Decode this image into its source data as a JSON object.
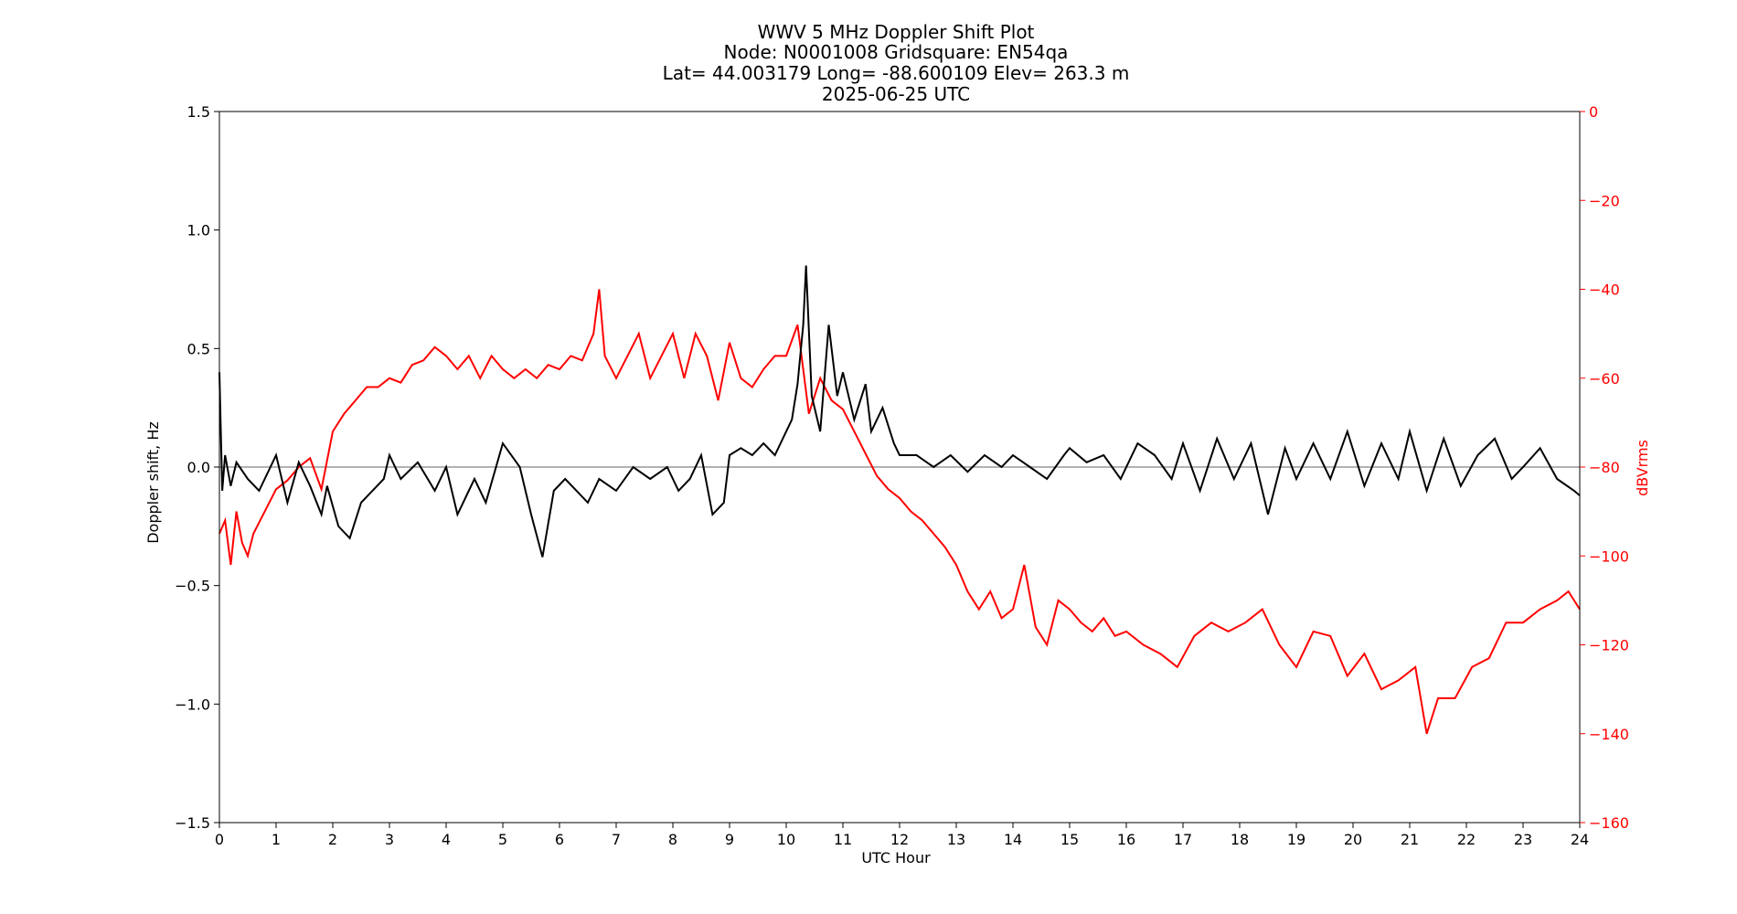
{
  "chart_data": {
    "type": "line",
    "title": [
      "WWV 5 MHz Doppler Shift Plot",
      "Node:  N0001008     Gridsquare:  EN54qa",
      "Lat= 44.003179    Long= -88.600109    Elev= 263.3 m",
      "2025-06-25  UTC"
    ],
    "xlabel": "UTC Hour",
    "ylabel": "Doppler shift, Hz",
    "y2label": "dBVrms",
    "xlim": [
      0,
      24
    ],
    "ylim": [
      -1.5,
      1.5
    ],
    "y2lim": [
      -160,
      0
    ],
    "x_ticks": [
      0,
      1,
      2,
      3,
      4,
      5,
      6,
      7,
      8,
      9,
      10,
      11,
      12,
      13,
      14,
      15,
      16,
      17,
      18,
      19,
      20,
      21,
      22,
      23,
      24
    ],
    "y_ticks": [
      -1.5,
      -1.0,
      -0.5,
      0.0,
      0.5,
      1.0,
      1.5
    ],
    "y_tick_labels": [
      "−1.5",
      "−1.0",
      "−0.5",
      "0.0",
      "0.5",
      "1.0",
      "1.5"
    ],
    "y2_ticks": [
      0,
      -20,
      -40,
      -60,
      -80,
      -100,
      -120,
      -140,
      -160
    ],
    "y2_tick_labels": [
      "0",
      "−20",
      "−40",
      "−60",
      "−80",
      "−100",
      "−120",
      "−140",
      "−160"
    ],
    "grid": false,
    "zero_line": true,
    "colors": {
      "doppler": "#000000",
      "power": "#ff0000",
      "zero_line": "#999999",
      "y2_axis": "#ff0000"
    },
    "series": [
      {
        "axis": "left",
        "x": [
          0,
          0.05,
          0.1,
          0.2,
          0.3,
          0.5,
          0.7,
          0.9,
          1.0,
          1.2,
          1.4,
          1.6,
          1.8,
          1.9,
          2.1,
          2.3,
          2.5,
          2.7,
          2.9,
          3.0,
          3.2,
          3.5,
          3.8,
          4.0,
          4.2,
          4.5,
          4.7,
          5.0,
          5.3,
          5.5,
          5.7,
          5.9,
          6.1,
          6.3,
          6.5,
          6.7,
          7.0,
          7.3,
          7.6,
          7.9,
          8.1,
          8.3,
          8.5,
          8.7,
          8.9,
          9.0,
          9.2,
          9.4,
          9.6,
          9.8,
          10.0,
          10.1,
          10.2,
          10.3,
          10.35,
          10.45,
          10.6,
          10.75,
          10.9,
          11.0,
          11.2,
          11.4,
          11.5,
          11.7,
          11.9,
          12.0,
          12.3,
          12.6,
          12.9,
          13.2,
          13.5,
          13.8,
          14.0,
          14.3,
          14.6,
          14.9,
          15.0,
          15.3,
          15.6,
          15.9,
          16.2,
          16.5,
          16.8,
          17.0,
          17.3,
          17.6,
          17.9,
          18.2,
          18.5,
          18.8,
          19.0,
          19.3,
          19.6,
          19.9,
          20.2,
          20.5,
          20.8,
          21.0,
          21.3,
          21.6,
          21.9,
          22.2,
          22.5,
          22.8,
          23.0,
          23.3,
          23.6,
          23.9,
          24.0
        ],
        "values": [
          0.4,
          -0.1,
          0.05,
          -0.08,
          0.02,
          -0.05,
          -0.1,
          0.0,
          0.05,
          -0.15,
          0.02,
          -0.08,
          -0.2,
          -0.08,
          -0.25,
          -0.3,
          -0.15,
          -0.1,
          -0.05,
          0.05,
          -0.05,
          0.02,
          -0.1,
          0.0,
          -0.2,
          -0.05,
          -0.15,
          0.1,
          0.0,
          -0.2,
          -0.38,
          -0.1,
          -0.05,
          -0.1,
          -0.15,
          -0.05,
          -0.1,
          0.0,
          -0.05,
          0.0,
          -0.1,
          -0.05,
          0.05,
          -0.2,
          -0.15,
          0.05,
          0.08,
          0.05,
          0.1,
          0.05,
          0.15,
          0.2,
          0.35,
          0.6,
          0.85,
          0.3,
          0.15,
          0.6,
          0.3,
          0.4,
          0.2,
          0.35,
          0.15,
          0.25,
          0.1,
          0.05,
          0.05,
          0.0,
          0.05,
          -0.02,
          0.05,
          0.0,
          0.05,
          0.0,
          -0.05,
          0.05,
          0.08,
          0.02,
          0.05,
          -0.05,
          0.1,
          0.05,
          -0.05,
          0.1,
          -0.1,
          0.12,
          -0.05,
          0.1,
          -0.2,
          0.08,
          -0.05,
          0.1,
          -0.05,
          0.15,
          -0.08,
          0.1,
          -0.05,
          0.15,
          -0.1,
          0.12,
          -0.08,
          0.05,
          0.12,
          -0.05,
          0.0,
          0.08,
          -0.05,
          -0.1,
          -0.12
        ]
      },
      {
        "axis": "right",
        "x": [
          0,
          0.1,
          0.2,
          0.3,
          0.4,
          0.5,
          0.6,
          0.8,
          1.0,
          1.2,
          1.4,
          1.6,
          1.8,
          2.0,
          2.2,
          2.4,
          2.6,
          2.8,
          3.0,
          3.2,
          3.4,
          3.6,
          3.8,
          4.0,
          4.2,
          4.4,
          4.6,
          4.8,
          5.0,
          5.2,
          5.4,
          5.6,
          5.8,
          6.0,
          6.2,
          6.4,
          6.6,
          6.7,
          6.8,
          7.0,
          7.2,
          7.4,
          7.6,
          7.8,
          8.0,
          8.2,
          8.4,
          8.6,
          8.8,
          9.0,
          9.2,
          9.4,
          9.6,
          9.8,
          10.0,
          10.2,
          10.4,
          10.6,
          10.8,
          11.0,
          11.2,
          11.4,
          11.6,
          11.8,
          12.0,
          12.2,
          12.4,
          12.6,
          12.8,
          13.0,
          13.2,
          13.4,
          13.6,
          13.8,
          14.0,
          14.2,
          14.4,
          14.6,
          14.8,
          15.0,
          15.2,
          15.4,
          15.6,
          15.8,
          16.0,
          16.3,
          16.6,
          16.9,
          17.2,
          17.5,
          17.8,
          18.1,
          18.4,
          18.7,
          19.0,
          19.3,
          19.6,
          19.9,
          20.2,
          20.5,
          20.8,
          21.1,
          21.3,
          21.5,
          21.8,
          22.1,
          22.4,
          22.7,
          23.0,
          23.3,
          23.6,
          23.8,
          24.0
        ],
        "values": [
          -95,
          -92,
          -102,
          -90,
          -97,
          -100,
          -95,
          -90,
          -85,
          -83,
          -80,
          -78,
          -85,
          -72,
          -68,
          -65,
          -62,
          -62,
          -60,
          -61,
          -57,
          -56,
          -53,
          -55,
          -58,
          -55,
          -60,
          -55,
          -58,
          -60,
          -58,
          -60,
          -57,
          -58,
          -55,
          -56,
          -50,
          -40,
          -55,
          -60,
          -55,
          -50,
          -60,
          -55,
          -50,
          -60,
          -50,
          -55,
          -65,
          -52,
          -60,
          -62,
          -58,
          -55,
          -55,
          -48,
          -68,
          -60,
          -65,
          -67,
          -72,
          -77,
          -82,
          -85,
          -87,
          -90,
          -92,
          -95,
          -98,
          -102,
          -108,
          -112,
          -108,
          -114,
          -112,
          -102,
          -116,
          -120,
          -110,
          -112,
          -115,
          -117,
          -114,
          -118,
          -117,
          -120,
          -122,
          -125,
          -118,
          -115,
          -117,
          -115,
          -112,
          -120,
          -125,
          -117,
          -118,
          -127,
          -122,
          -130,
          -128,
          -125,
          -140,
          -132,
          -132,
          -125,
          -123,
          -115,
          -115,
          -112,
          -110,
          -108,
          -112
        ]
      }
    ]
  }
}
